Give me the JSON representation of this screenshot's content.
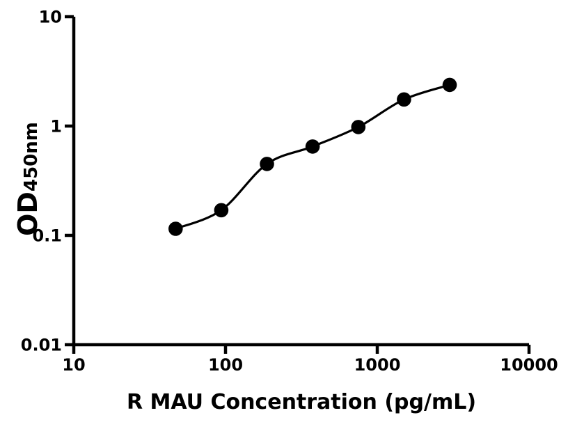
{
  "figure": {
    "background": "#ffffff",
    "foreground": "#000000"
  },
  "chart_data": {
    "type": "scatter",
    "subtype": "elisa-standard-curve",
    "title": "",
    "xlabel": "R MAU Concentration (pg/mL)",
    "ylabel_main": "OD",
    "ylabel_subscript": "450nm",
    "x_scale": "log10",
    "y_scale": "log10",
    "xlim": [
      10,
      10000
    ],
    "ylim": [
      0.01,
      10
    ],
    "x_tick_values": [
      10,
      100,
      1000,
      10000
    ],
    "x_tick_labels": [
      "10",
      "100",
      "1000",
      "10000"
    ],
    "y_tick_values": [
      10,
      1,
      0.1,
      0.01
    ],
    "y_tick_labels": [
      "10",
      "1",
      "0.1",
      "0.01"
    ],
    "grid": false,
    "legend": "none",
    "series": [
      {
        "name": "standard-curve",
        "x": [
          46.88,
          93.75,
          187.5,
          375,
          750,
          1500,
          3000
        ],
        "y": [
          0.115,
          0.17,
          0.45,
          0.65,
          0.98,
          1.75,
          2.38
        ],
        "marker": "filled-circle",
        "marker_color": "#000000",
        "line": "smooth-fit",
        "line_color": "#000000"
      }
    ]
  }
}
